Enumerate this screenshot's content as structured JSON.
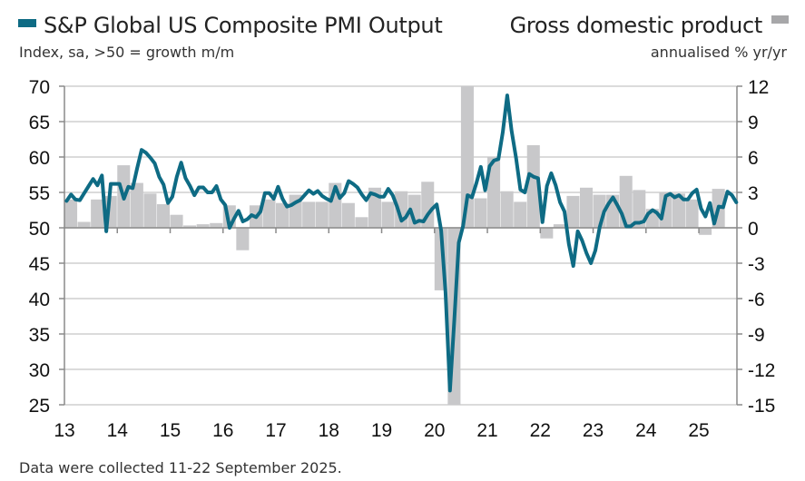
{
  "chart_data": {
    "type": "bar+line",
    "title": "",
    "left_legend": "S&P Global US Composite PMI Output",
    "left_subtitle": "Index, sa, >50 = growth m/m",
    "right_legend": "Gross domestic product",
    "right_subtitle": "annualised % yr/yr",
    "footnote": "Data were collected 11-22 September 2025.",
    "colors": {
      "pmi_line": "#0e6b84",
      "gdp_bars": "#c8c8ca",
      "legend_gdp": "#a7a7a9",
      "grid": "#cfcfcf",
      "axis": "#8a8a8a"
    },
    "x_ticks": [
      "13",
      "14",
      "15",
      "16",
      "17",
      "18",
      "19",
      "20",
      "21",
      "22",
      "23",
      "24",
      "25"
    ],
    "x_range": [
      2013.0,
      2025.72
    ],
    "y_left": {
      "ticks": [
        70,
        65,
        60,
        55,
        50,
        45,
        40,
        35,
        30,
        25
      ],
      "range": [
        25,
        70
      ]
    },
    "y_right": {
      "ticks": [
        12,
        9,
        6,
        3,
        0,
        -3,
        -6,
        -9,
        -12,
        -15
      ],
      "range": [
        -15,
        12
      ]
    },
    "grid": true,
    "series": [
      {
        "name": "S&P Global US Composite PMI Output",
        "type": "line",
        "axis": "left",
        "start": "2013-01",
        "frequency": "monthly",
        "values": [
          53.8,
          54.7,
          54.0,
          53.9,
          54.9,
          55.9,
          56.9,
          56.0,
          57.4,
          49.5,
          56.2,
          56.2,
          56.2,
          54.1,
          55.8,
          55.6,
          58.4,
          61.0,
          60.6,
          59.9,
          59.1,
          57.2,
          56.1,
          53.5,
          54.4,
          57.2,
          59.2,
          57.0,
          55.9,
          54.6,
          55.7,
          55.7,
          55.0,
          55.0,
          55.9,
          54.0,
          53.2,
          50.0,
          51.3,
          52.4,
          50.9,
          51.2,
          51.8,
          51.5,
          52.3,
          54.9,
          54.9,
          54.1,
          55.8,
          54.1,
          53.0,
          53.2,
          53.6,
          53.9,
          54.6,
          55.3,
          54.8,
          55.2,
          54.5,
          54.1,
          53.8,
          55.8,
          54.2,
          54.9,
          56.6,
          56.2,
          55.7,
          54.7,
          53.9,
          54.9,
          54.7,
          54.4,
          54.4,
          55.5,
          54.6,
          53.0,
          51.0,
          51.5,
          52.6,
          50.7,
          51.0,
          50.9,
          51.9,
          52.7,
          53.3,
          49.6,
          40.9,
          27.0,
          37.0,
          47.9,
          50.3,
          54.6,
          54.3,
          56.3,
          58.6,
          55.3,
          58.7,
          59.5,
          59.7,
          63.5,
          68.7,
          63.7,
          59.9,
          55.4,
          55.0,
          57.6,
          57.2,
          57.0,
          50.8,
          55.9,
          57.7,
          56.0,
          53.6,
          52.3,
          47.7,
          44.6,
          49.5,
          48.2,
          46.4,
          45.0,
          46.8,
          50.1,
          52.3,
          53.4,
          54.3,
          53.2,
          52.0,
          50.2,
          50.2,
          50.7,
          50.7,
          50.9,
          52.0,
          52.5,
          52.1,
          51.3,
          54.5,
          54.8,
          54.3,
          54.6,
          54.0,
          54.0,
          54.9,
          55.4,
          52.7,
          51.6,
          53.5,
          50.6,
          53.0,
          52.9,
          55.1,
          54.6,
          53.6
        ]
      },
      {
        "name": "Gross domestic product",
        "type": "bar",
        "axis": "right",
        "start": "2013-Q1",
        "frequency": "quarterly",
        "values": [
          2.4,
          0.5,
          2.4,
          2.7,
          5.3,
          3.8,
          2.9,
          2.0,
          1.1,
          0.2,
          0.3,
          0.4,
          1.9,
          -1.9,
          1.9,
          2.4,
          2.1,
          2.8,
          2.2,
          2.2,
          3.8,
          2.1,
          0.9,
          3.4,
          2.2,
          3.1,
          2.8,
          3.9,
          -5.3,
          -15.0,
          12.0,
          2.5,
          6.0,
          3.1,
          2.2,
          7.0,
          -0.9,
          0.3,
          2.7,
          3.4,
          2.8,
          2.8,
          4.4,
          3.2,
          1.6,
          3.0,
          2.9,
          2.4,
          -0.6,
          3.3
        ]
      }
    ]
  }
}
